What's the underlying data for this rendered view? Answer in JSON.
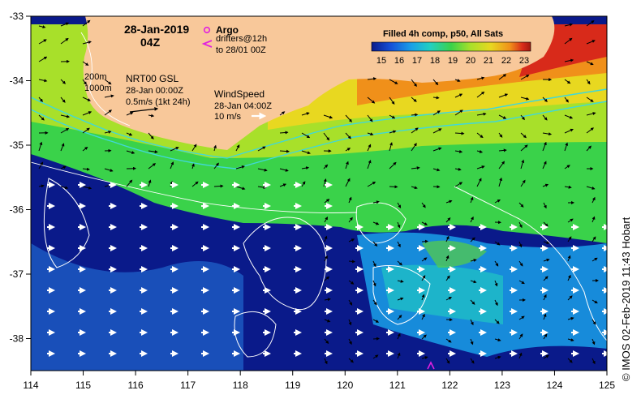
{
  "header": {
    "date": "28-Jan-2019",
    "time": "04Z",
    "argo_label": "Argo",
    "drifters_line1": "drifters@12h",
    "drifters_line2": "to 28/01 00Z"
  },
  "colorbar": {
    "title": "Filled 4h comp, p50, All Sats",
    "ticks": [
      "15",
      "16",
      "17",
      "18",
      "19",
      "20",
      "21",
      "22",
      "23"
    ],
    "colors": [
      "#0a1a8a",
      "#1550d8",
      "#1aa0e8",
      "#22d0c0",
      "#3ad24a",
      "#a8e02a",
      "#e8d820",
      "#f0901a",
      "#d82a1a",
      "#a01a10"
    ]
  },
  "annotations": {
    "depth_200": "200m",
    "depth_1000": "1000m",
    "nrt_title": "NRT00 GSL",
    "nrt_date": "28-Jan 00:00Z",
    "nrt_scale": "0.5m/s (1kt 24h)",
    "wind_title": "WindSpeed",
    "wind_date": "28-Jan 04:00Z",
    "wind_scale": "10 m/s"
  },
  "axes": {
    "x_ticks": [
      "114",
      "115",
      "116",
      "117",
      "118",
      "119",
      "120",
      "121",
      "122",
      "123",
      "124",
      "125"
    ],
    "y_ticks": [
      "-33",
      "-34",
      "-35",
      "-36",
      "-37",
      "-38"
    ]
  },
  "credit": "© IMOS 02-Feb-2019 11:43 Hobart",
  "colors": {
    "land": "#f8c89a",
    "cold": "#0a1a8a",
    "warm": "#f0901a",
    "isobath": "#40d8d8",
    "argo_marker": "#e020e0"
  }
}
